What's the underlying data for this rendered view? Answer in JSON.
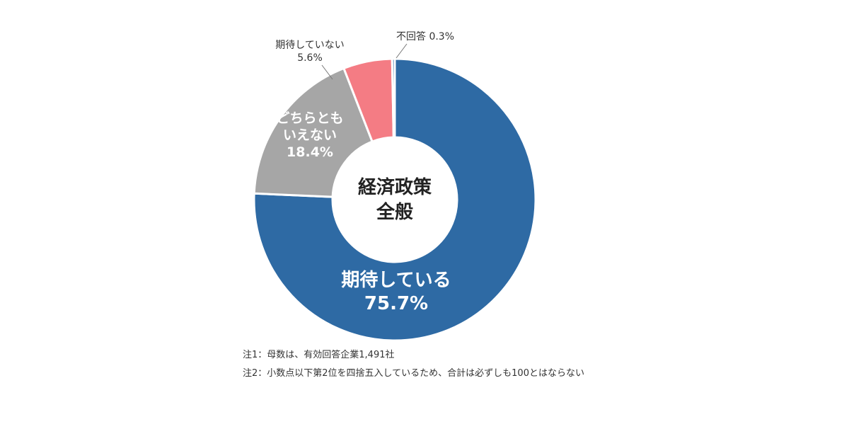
{
  "chart_data": {
    "type": "pie",
    "donut": true,
    "center_label": [
      "経済政策",
      "全般"
    ],
    "start": "top",
    "direction": "clockwise",
    "slices": [
      {
        "label": "期待している",
        "value": 75.7,
        "display": "75.7%",
        "color": "#2e6aa4"
      },
      {
        "label": "どちらとも いえない",
        "label_lines": [
          "どちらとも",
          "いえない"
        ],
        "value": 18.4,
        "display": "18.4%",
        "color": "#a6a6a6"
      },
      {
        "label": "期待していない",
        "value": 5.6,
        "display": "5.6%",
        "color": "#f47c84"
      },
      {
        "label": "不回答",
        "value": 0.3,
        "display": "0.3%",
        "color": "#2e6aa4"
      }
    ]
  },
  "notes": [
    "注1：母数は、有効回答企業1,491社",
    "注2：小数点以下第2位を四捨五入しているため、合計は必ずしも100とはならない"
  ]
}
